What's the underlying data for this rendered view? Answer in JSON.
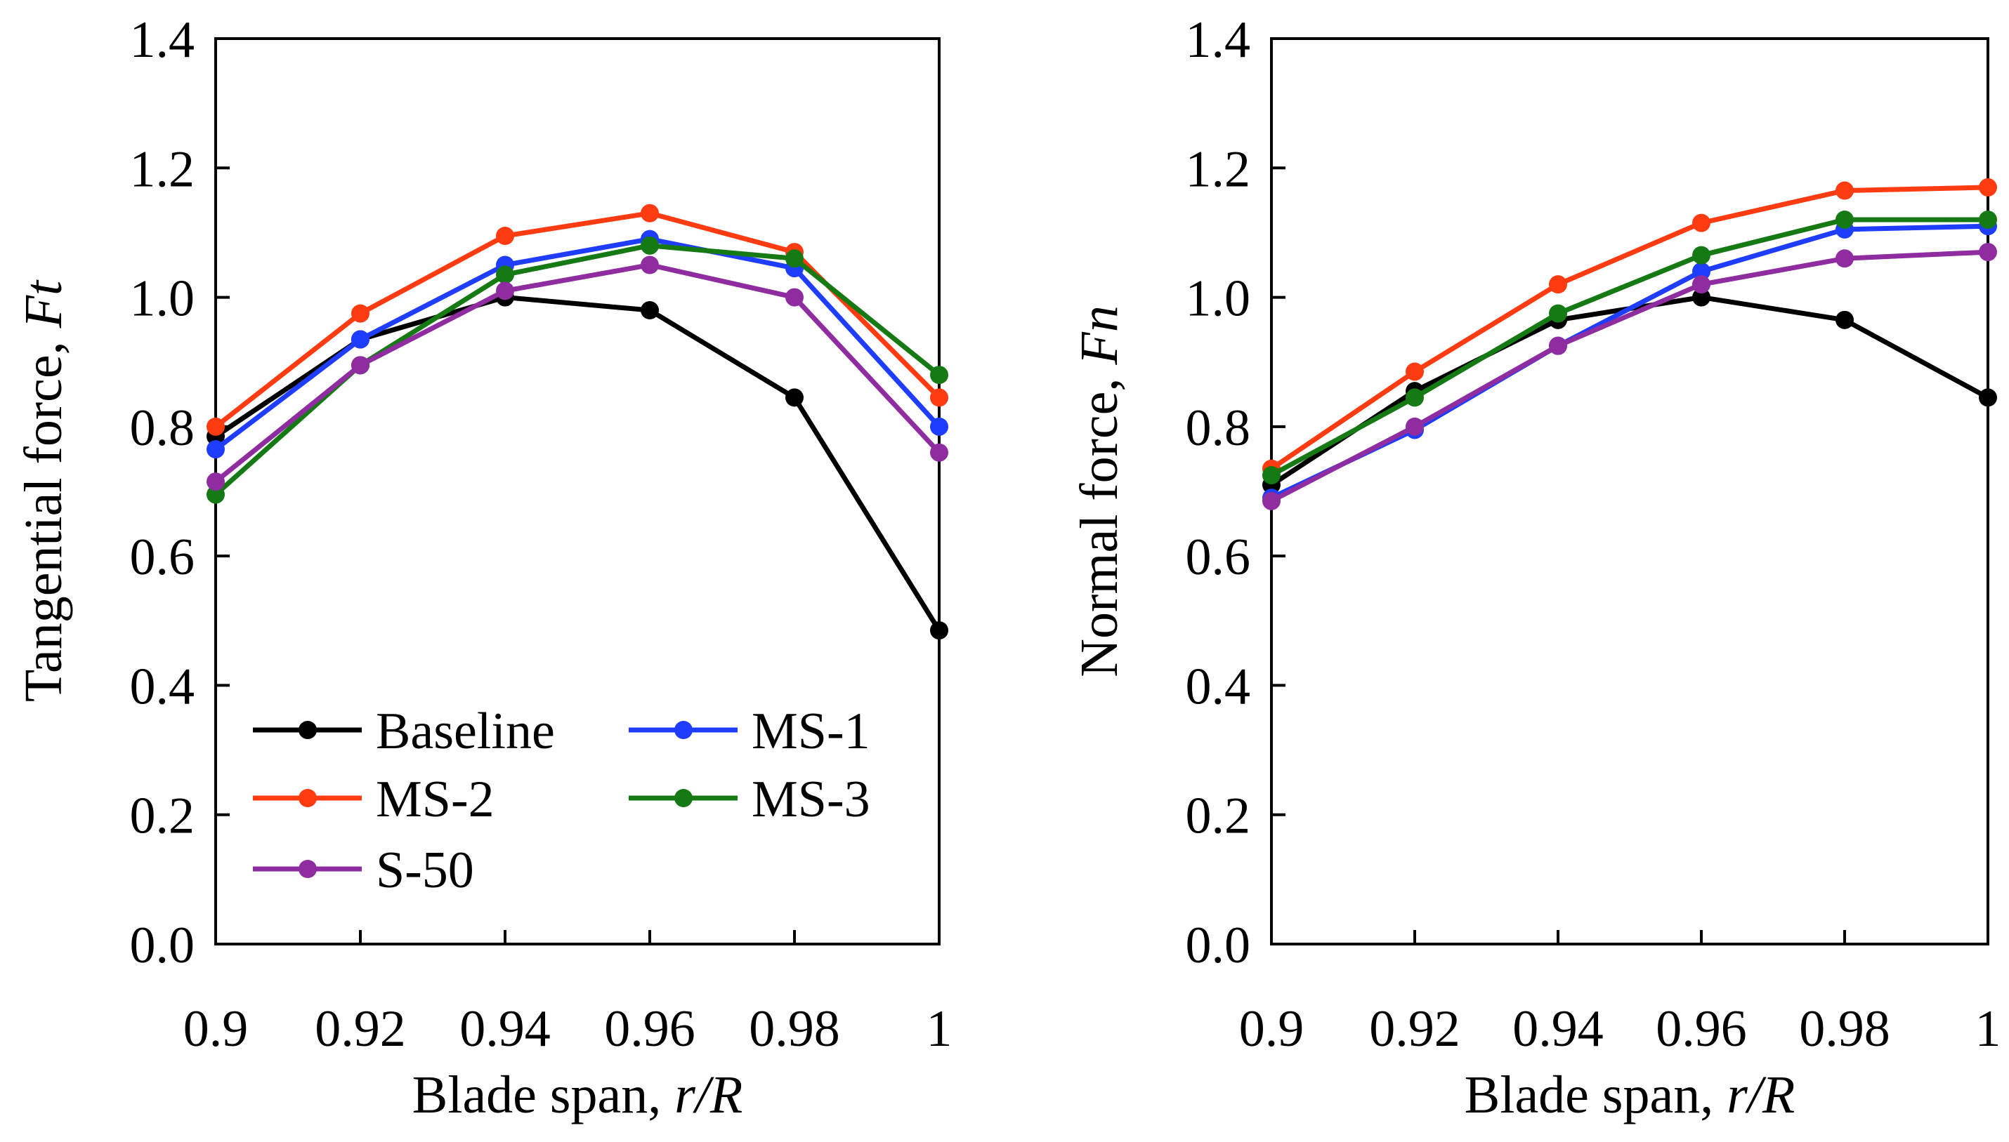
{
  "chart_data": [
    {
      "type": "line",
      "xlabel": {
        "prefix": "Blade span, ",
        "var": "r/R"
      },
      "ylabel": {
        "prefix": "Tangential force, ",
        "var": "Ft"
      },
      "xlim": [
        0.9,
        1.0
      ],
      "ylim": [
        0.0,
        1.4
      ],
      "x_ticks": [
        "0.9",
        "0.92",
        "0.94",
        "0.96",
        "0.98",
        "1"
      ],
      "y_ticks": [
        "0.0",
        "0.2",
        "0.4",
        "0.6",
        "0.8",
        "1.0",
        "1.2",
        "1.4"
      ],
      "x": [
        0.9,
        0.92,
        0.94,
        0.96,
        0.98,
        1.0
      ],
      "legend": "lower-left",
      "series": [
        {
          "name": "Baseline",
          "color": "#000000",
          "values": [
            0.785,
            0.935,
            1.0,
            0.98,
            0.845,
            0.485
          ]
        },
        {
          "name": "MS-1",
          "color": "#1f3dff",
          "values": [
            0.765,
            0.935,
            1.05,
            1.09,
            1.045,
            0.8
          ]
        },
        {
          "name": "MS-2",
          "color": "#ff3b12",
          "values": [
            0.8,
            0.975,
            1.095,
            1.13,
            1.07,
            0.845
          ]
        },
        {
          "name": "MS-3",
          "color": "#157a14",
          "values": [
            0.695,
            0.895,
            1.035,
            1.08,
            1.06,
            0.88
          ]
        },
        {
          "name": "S-50",
          "color": "#8e2ca0",
          "values": [
            0.715,
            0.895,
            1.01,
            1.05,
            1.0,
            0.76
          ]
        }
      ]
    },
    {
      "type": "line",
      "xlabel": {
        "prefix": "Blade span, ",
        "var": "r/R"
      },
      "ylabel": {
        "prefix": "Normal force, ",
        "var": "Fn"
      },
      "xlim": [
        0.9,
        1.0
      ],
      "ylim": [
        0.0,
        1.4
      ],
      "x_ticks": [
        "0.9",
        "0.92",
        "0.94",
        "0.96",
        "0.98",
        "1"
      ],
      "y_ticks": [
        "0.0",
        "0.2",
        "0.4",
        "0.6",
        "0.8",
        "1.0",
        "1.2",
        "1.4"
      ],
      "x": [
        0.9,
        0.92,
        0.94,
        0.96,
        0.98,
        1.0
      ],
      "series": [
        {
          "name": "Baseline",
          "color": "#000000",
          "values": [
            0.71,
            0.855,
            0.965,
            1.0,
            0.965,
            0.845
          ]
        },
        {
          "name": "MS-1",
          "color": "#1f3dff",
          "values": [
            0.69,
            0.795,
            0.925,
            1.04,
            1.105,
            1.11
          ]
        },
        {
          "name": "MS-2",
          "color": "#ff3b12",
          "values": [
            0.735,
            0.885,
            1.02,
            1.115,
            1.165,
            1.17
          ]
        },
        {
          "name": "MS-3",
          "color": "#157a14",
          "values": [
            0.725,
            0.845,
            0.975,
            1.065,
            1.12,
            1.12
          ]
        },
        {
          "name": "S-50",
          "color": "#8e2ca0",
          "values": [
            0.685,
            0.8,
            0.925,
            1.02,
            1.06,
            1.07
          ]
        }
      ]
    }
  ]
}
